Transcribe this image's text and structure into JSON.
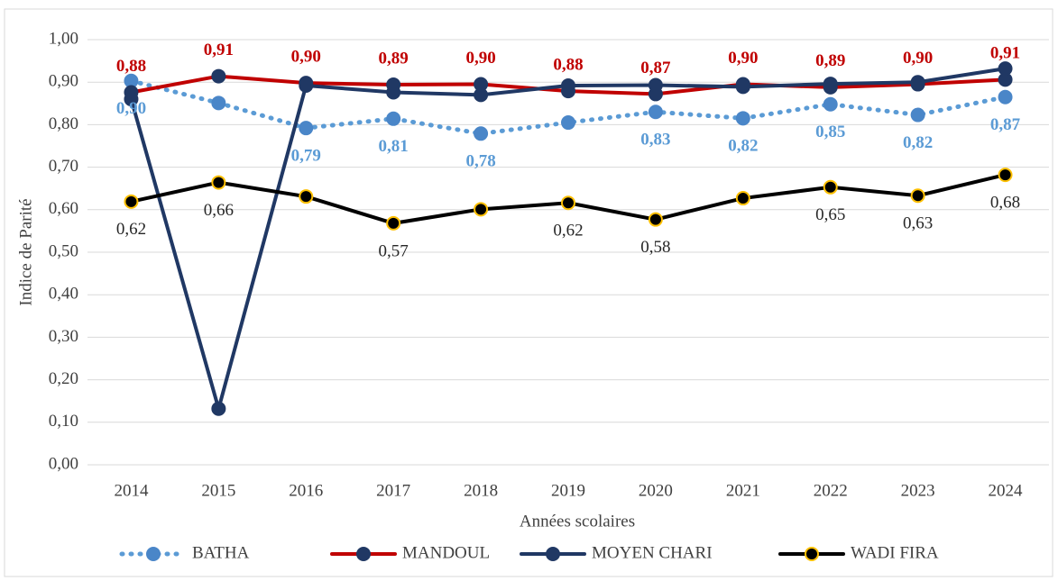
{
  "chart_data": {
    "type": "line",
    "x_label": "Années scolaires",
    "y_label": "Indice de Parité",
    "categories": [
      "2014",
      "2015",
      "2016",
      "2017",
      "2018",
      "2019",
      "2020",
      "2021",
      "2022",
      "2023",
      "2024"
    ],
    "ylim": [
      0,
      1
    ],
    "yticks": [
      {
        "value": 0,
        "label": "0,00"
      },
      {
        "value": 0.1,
        "label": "0,10"
      },
      {
        "value": 0.2,
        "label": "0,20"
      },
      {
        "value": 0.3,
        "label": "0,30"
      },
      {
        "value": 0.4,
        "label": "0,40"
      },
      {
        "value": 0.5,
        "label": "0,50"
      },
      {
        "value": 0.6,
        "label": "0,60"
      },
      {
        "value": 0.7,
        "label": "0,70"
      },
      {
        "value": 0.8,
        "label": "0,80"
      },
      {
        "value": 0.9,
        "label": "0,90"
      },
      {
        "value": 1,
        "label": "1,00"
      }
    ],
    "grid": true,
    "legend": "bottom",
    "series": [
      {
        "name": "BATHA",
        "color": "#5b9bd5",
        "line_style": "dotted",
        "marker_color": "#4a86c8",
        "marker_edge": "#4a86c8",
        "label_position": "below",
        "label_bold": true,
        "values": [
          0.903,
          0.851,
          0.792,
          0.814,
          0.779,
          0.805,
          0.83,
          0.815,
          0.848,
          0.823,
          0.865
        ],
        "value_labels": [
          "0,90",
          null,
          "0,79",
          "0,81",
          "0,78",
          null,
          "0,83",
          "0,82",
          "0,85",
          "0,82",
          "0,87"
        ]
      },
      {
        "name": "MANDOUL",
        "color": "#c00000",
        "line_style": "solid",
        "marker_color": "#203864",
        "marker_edge": "#203864",
        "label_position": "above",
        "label_bold": true,
        "values": [
          0.876,
          0.914,
          0.898,
          0.894,
          0.895,
          0.879,
          0.872,
          0.895,
          0.888,
          0.895,
          0.906
        ],
        "value_labels": [
          "0,88",
          "0,91",
          "0,90",
          "0,89",
          "0,90",
          "0,88",
          "0,87",
          "0,90",
          "0,89",
          "0,90",
          "0,91"
        ]
      },
      {
        "name": "MOYEN CHARI",
        "color": "#203864",
        "line_style": "solid",
        "marker_color": "#203864",
        "marker_edge": "#203864",
        "values": [
          0.86,
          0.132,
          0.892,
          0.876,
          0.87,
          0.892,
          0.893,
          0.889,
          0.896,
          0.9,
          0.932
        ]
      },
      {
        "name": "WADI FIRA",
        "color": "#000000",
        "line_style": "solid",
        "marker_color": "#000000",
        "marker_edge": "#ffc000",
        "label_position": "below",
        "label_bold": false,
        "values": [
          0.619,
          0.664,
          0.631,
          0.568,
          0.601,
          0.616,
          0.577,
          0.627,
          0.653,
          0.633,
          0.682
        ],
        "value_labels": [
          "0,62",
          "0,66",
          null,
          "0,57",
          null,
          "0,62",
          "0,58",
          null,
          "0,65",
          "0,63",
          "0,68"
        ]
      }
    ]
  }
}
